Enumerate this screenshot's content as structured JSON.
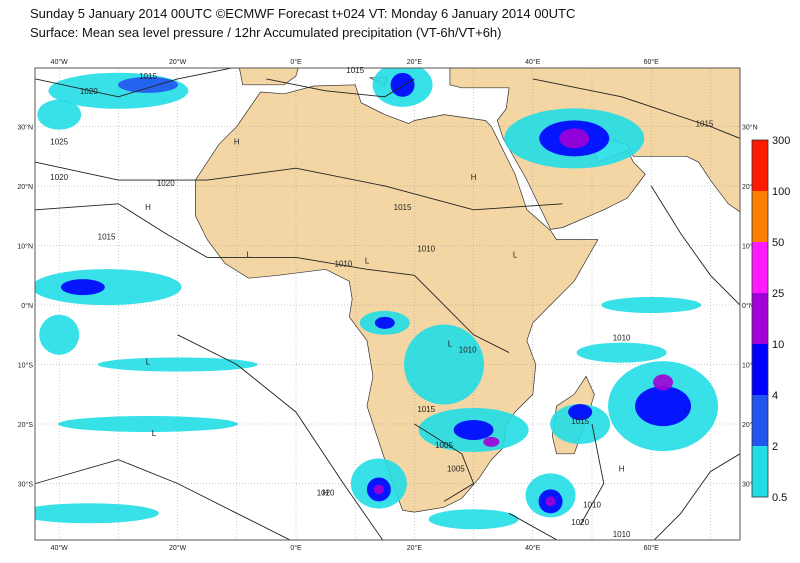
{
  "header": {
    "line1": "Sunday 5 January 2014 00UTC ©ECMWF Forecast t+024 VT: Monday 6 January 2014 00UTC",
    "line2": "Surface: Mean sea level pressure / 12hr Accumulated precipitation (VT-6h/VT+6h)"
  },
  "map": {
    "longitude_labels": [
      "40°W",
      "20°W",
      "0°E",
      "20°E",
      "40°E",
      "60°E"
    ],
    "latitude_labels": [
      "30°N",
      "20°N",
      "10°N",
      "0°N",
      "10°S",
      "20°S",
      "30°S"
    ],
    "isobar_labels": [
      "1020",
      "1015",
      "1015",
      "1020",
      "1025",
      "1020",
      "1015",
      "1010",
      "1015",
      "1010",
      "1010",
      "1015",
      "1005",
      "1005",
      "1010",
      "1020",
      "1015",
      "1015",
      "1010",
      "1020",
      "1010"
    ],
    "pressure_centers": [
      "H",
      "H",
      "L",
      "L",
      "H",
      "L",
      "L",
      "H",
      "L",
      "H",
      "L",
      "L"
    ]
  },
  "legend": {
    "labels": [
      "300",
      "100",
      "50",
      "25",
      "10",
      "4",
      "2",
      "0.5"
    ],
    "colors": [
      "#ff1a00",
      "#ff7f00",
      "#ff1aff",
      "#a100d6",
      "#0000ff",
      "#2255ee",
      "#22dde6"
    ]
  }
}
